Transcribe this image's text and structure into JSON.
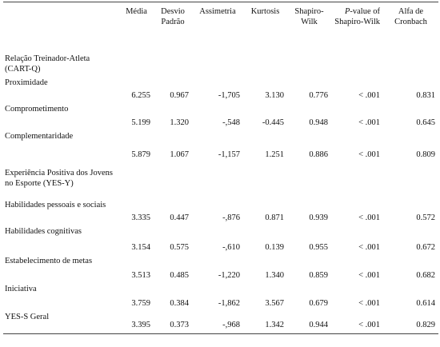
{
  "table": {
    "columns": [
      "Média",
      "Desvio Padrão",
      "Assimetria",
      "Kurtosis",
      "Shapiro-Wilk",
      {
        "italic": "P",
        "text": "-value of Shapiro-Wilk"
      },
      "Alfa de Cronbach"
    ],
    "rows": [
      [
        "Relação Treinador-Atleta (CART-Q)"
      ],
      [
        "Proximidade",
        "6.255",
        "0.967",
        "-1,705",
        "3.130",
        "0.776",
        "< .001",
        "0.831"
      ],
      [
        "Comprometimento",
        "5.199",
        "1.320",
        "-,548",
        "-0.445",
        "0.948",
        "< .001",
        "0.645"
      ],
      [
        "Complementaridade",
        "5.879",
        "1.067",
        "-1,157",
        "1.251",
        "0.886",
        "< .001",
        "0.809"
      ],
      [
        "Experiência Positiva dos Jovens no Esporte (YES-Y)"
      ],
      [
        "Habilidades pessoais e sociais",
        "3.335",
        "0.447",
        "-,876",
        "0.871",
        "0.939",
        "< .001",
        "0.572"
      ],
      [
        "Habilidades cognitivas",
        "3.154",
        "0.575",
        "-,610",
        "0.139",
        "0.955",
        "< .001",
        "0.672"
      ],
      [
        "Estabelecimento de metas",
        "3.513",
        "0.485",
        "-1,220",
        "1.340",
        "0.859",
        "< .001",
        "0.682"
      ],
      [
        "Iniciativa",
        "3.759",
        "0.384",
        "-1,862",
        "3.567",
        "0.679",
        "< .001",
        "0.614"
      ],
      [
        "YES-S Geral",
        "3.395",
        "0.373",
        "-,968",
        "1.342",
        "0.944",
        "< .001",
        "0.829"
      ]
    ]
  }
}
